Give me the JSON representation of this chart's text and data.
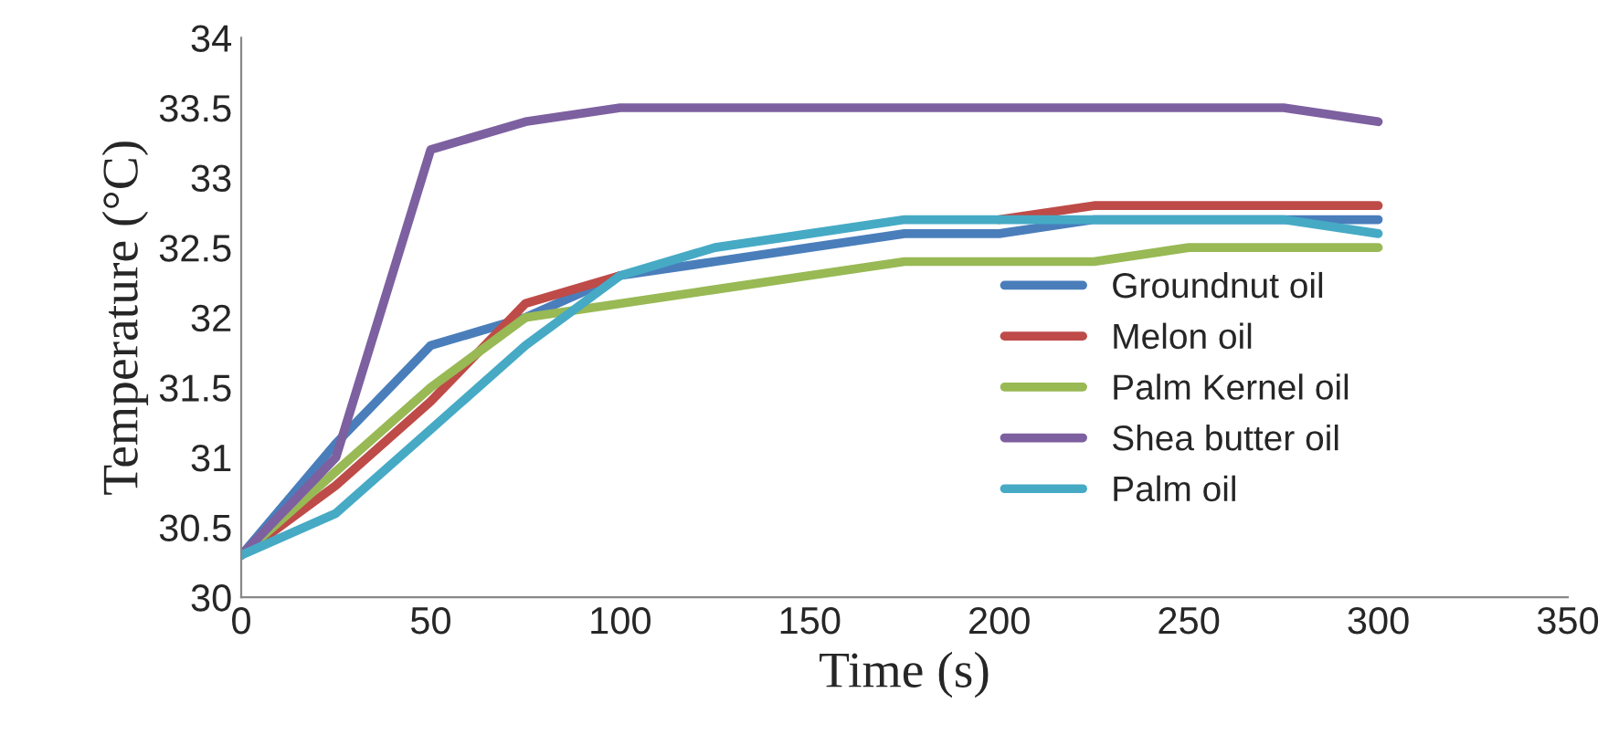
{
  "chart_data": {
    "type": "line",
    "xlabel": "Time (s)",
    "ylabel": "Temperature (°C)",
    "x": [
      0,
      25,
      50,
      75,
      100,
      125,
      150,
      175,
      200,
      225,
      250,
      275,
      300
    ],
    "series": [
      {
        "name": "Groundnut oil",
        "color": "#4a7ebb",
        "values": [
          30.3,
          31.1,
          31.8,
          32.0,
          32.3,
          32.4,
          32.5,
          32.6,
          32.6,
          32.7,
          32.7,
          32.7,
          32.7
        ]
      },
      {
        "name": "Melon oil",
        "color": "#be4b48",
        "values": [
          30.3,
          30.8,
          31.4,
          32.1,
          32.3,
          null,
          null,
          null,
          32.7,
          32.8,
          32.8,
          32.8,
          32.8
        ]
      },
      {
        "name": "Palm Kernel oil",
        "color": "#98b954",
        "values": [
          30.3,
          30.9,
          31.5,
          32.0,
          32.1,
          32.2,
          32.3,
          32.4,
          32.4,
          32.4,
          32.5,
          32.5,
          32.5
        ]
      },
      {
        "name": "Shea butter oil",
        "color": "#7d60a0",
        "values": [
          30.3,
          31.0,
          33.2,
          33.4,
          33.5,
          33.5,
          33.5,
          33.5,
          33.5,
          33.5,
          33.5,
          33.5,
          33.4
        ]
      },
      {
        "name": "Palm oil",
        "color": "#46aac5",
        "values": [
          30.3,
          30.6,
          31.2,
          31.8,
          32.3,
          32.5,
          32.6,
          32.7,
          32.7,
          32.7,
          32.7,
          32.7,
          32.6
        ]
      }
    ],
    "xlim": [
      0,
      350
    ],
    "xticks": [
      0,
      50,
      100,
      150,
      200,
      250,
      300,
      350
    ],
    "ylim": [
      30,
      34
    ],
    "yticks": [
      30,
      30.5,
      31,
      31.5,
      32,
      32.5,
      33,
      33.5,
      34
    ],
    "grid": false,
    "legend": "right",
    "marker": "none",
    "line_style": "solid"
  }
}
